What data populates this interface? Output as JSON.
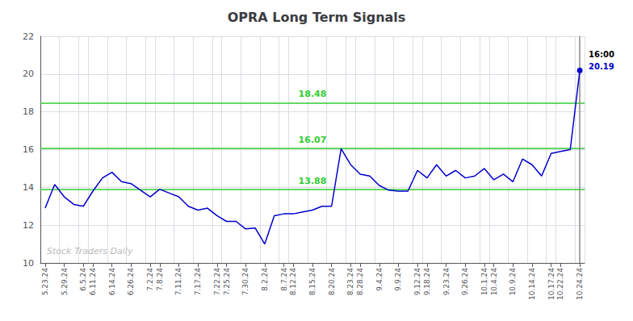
{
  "chart_data": {
    "type": "line",
    "title": "OPRA Long Term Signals",
    "categories": [
      "5.23.24",
      null,
      "5.29.24",
      null,
      "6.5.24",
      "6.11.24",
      null,
      "6.14.24",
      null,
      "6.26.24",
      null,
      "7.2.24",
      "7.8.24",
      null,
      "7.11.24",
      null,
      "7.17.24",
      null,
      "7.22.24",
      "7.25.24",
      null,
      "7.30.24",
      null,
      "8.2.24",
      null,
      "8.7.24",
      "8.12.24",
      null,
      "8.15.24",
      null,
      "8.20.24",
      null,
      "8.23.24",
      "8.28.24",
      null,
      "9.4.24",
      null,
      "9.9.24",
      null,
      "9.12.24",
      "9.18.24",
      null,
      "9.23.24",
      null,
      "9.26.24",
      null,
      "10.1.24",
      "10.4.24",
      null,
      "10.9.24",
      null,
      "10.14.24",
      null,
      "10.17.24",
      "10.22.24",
      null,
      "10.24.24"
    ],
    "values": [
      12.9,
      14.15,
      13.5,
      13.1,
      13.0,
      13.8,
      14.5,
      14.8,
      14.3,
      14.2,
      13.85,
      13.5,
      13.9,
      13.7,
      13.5,
      13.0,
      12.8,
      12.9,
      12.5,
      12.2,
      12.2,
      11.8,
      11.85,
      11.0,
      12.5,
      12.6,
      12.6,
      12.7,
      12.8,
      13.0,
      13.0,
      16.05,
      15.2,
      14.7,
      14.6,
      14.1,
      13.85,
      13.8,
      13.8,
      14.9,
      14.5,
      15.2,
      14.6,
      14.9,
      14.5,
      14.6,
      15.0,
      14.4,
      14.7,
      14.3,
      15.5,
      15.2,
      14.6,
      15.8,
      15.9,
      16.0,
      20.19
    ],
    "color": "#0000cc",
    "ylim": [
      10,
      22
    ],
    "yticks": [
      10,
      12,
      14,
      16,
      18,
      20,
      22
    ],
    "grid": true,
    "hlines": [
      {
        "y": 18.48,
        "label": "18.48",
        "color": "#33cc33"
      },
      {
        "y": 16.07,
        "label": "16.07",
        "color": "#33cc33"
      },
      {
        "y": 13.88,
        "label": "13.88",
        "color": "#33cc33"
      }
    ],
    "annotations": [
      {
        "text": "16:00",
        "color": "#000000"
      },
      {
        "text": "20.19",
        "color": "#0000cc"
      }
    ],
    "watermark": {
      "text": "Stock Traders Daily",
      "color": "#bbbbbb"
    }
  }
}
